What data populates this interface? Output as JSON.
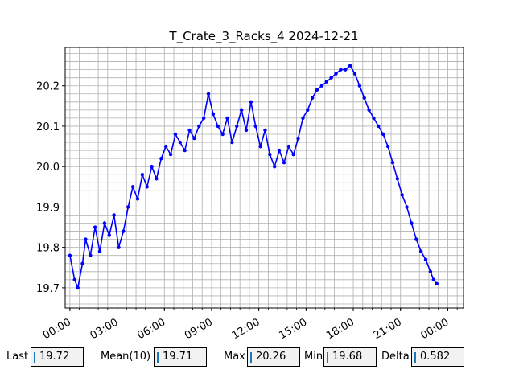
{
  "chart_data": {
    "type": "line",
    "title": "T_Crate_3_Racks_4 2024-12-21",
    "xlabel": "",
    "ylabel": "",
    "x_unit": "hours",
    "xlim": [
      -0.3,
      25.0
    ],
    "ylim": [
      19.65,
      20.295
    ],
    "x_ticks": [
      "00:00",
      "03:00",
      "06:00",
      "09:00",
      "12:00",
      "15:00",
      "18:00",
      "21:00",
      "00:00"
    ],
    "y_ticks": [
      "19.7",
      "19.8",
      "19.9",
      "20.0",
      "20.1",
      "20.2"
    ],
    "grid": true,
    "series": [
      {
        "color": "#0000ff",
        "marker": "dot",
        "points": [
          [
            0.0,
            19.78
          ],
          [
            0.3,
            19.72
          ],
          [
            0.5,
            19.7
          ],
          [
            0.8,
            19.76
          ],
          [
            1.0,
            19.82
          ],
          [
            1.3,
            19.78
          ],
          [
            1.6,
            19.85
          ],
          [
            1.9,
            19.79
          ],
          [
            2.2,
            19.86
          ],
          [
            2.5,
            19.83
          ],
          [
            2.8,
            19.88
          ],
          [
            3.1,
            19.8
          ],
          [
            3.4,
            19.84
          ],
          [
            3.7,
            19.9
          ],
          [
            4.0,
            19.95
          ],
          [
            4.3,
            19.92
          ],
          [
            4.6,
            19.98
          ],
          [
            4.9,
            19.95
          ],
          [
            5.2,
            20.0
          ],
          [
            5.5,
            19.97
          ],
          [
            5.8,
            20.02
          ],
          [
            6.1,
            20.05
          ],
          [
            6.4,
            20.03
          ],
          [
            6.7,
            20.08
          ],
          [
            7.0,
            20.06
          ],
          [
            7.3,
            20.04
          ],
          [
            7.6,
            20.09
          ],
          [
            7.9,
            20.07
          ],
          [
            8.2,
            20.1
          ],
          [
            8.5,
            20.12
          ],
          [
            8.8,
            20.18
          ],
          [
            9.1,
            20.13
          ],
          [
            9.4,
            20.1
          ],
          [
            9.7,
            20.08
          ],
          [
            10.0,
            20.12
          ],
          [
            10.3,
            20.06
          ],
          [
            10.6,
            20.1
          ],
          [
            10.9,
            20.14
          ],
          [
            11.2,
            20.09
          ],
          [
            11.5,
            20.16
          ],
          [
            11.8,
            20.1
          ],
          [
            12.1,
            20.05
          ],
          [
            12.4,
            20.09
          ],
          [
            12.7,
            20.03
          ],
          [
            13.0,
            20.0
          ],
          [
            13.3,
            20.04
          ],
          [
            13.6,
            20.01
          ],
          [
            13.9,
            20.05
          ],
          [
            14.2,
            20.03
          ],
          [
            14.5,
            20.07
          ],
          [
            14.8,
            20.12
          ],
          [
            15.1,
            20.14
          ],
          [
            15.4,
            20.17
          ],
          [
            15.7,
            20.19
          ],
          [
            16.0,
            20.2
          ],
          [
            16.3,
            20.21
          ],
          [
            16.6,
            20.22
          ],
          [
            16.9,
            20.23
          ],
          [
            17.2,
            20.24
          ],
          [
            17.5,
            20.24
          ],
          [
            17.8,
            20.25
          ],
          [
            18.1,
            20.23
          ],
          [
            18.4,
            20.2
          ],
          [
            18.7,
            20.17
          ],
          [
            19.0,
            20.14
          ],
          [
            19.3,
            20.12
          ],
          [
            19.6,
            20.1
          ],
          [
            19.9,
            20.08
          ],
          [
            20.2,
            20.05
          ],
          [
            20.5,
            20.01
          ],
          [
            20.8,
            19.97
          ],
          [
            21.1,
            19.93
          ],
          [
            21.4,
            19.9
          ],
          [
            21.7,
            19.86
          ],
          [
            22.0,
            19.82
          ],
          [
            22.3,
            19.79
          ],
          [
            22.6,
            19.77
          ],
          [
            22.9,
            19.74
          ],
          [
            23.1,
            19.72
          ],
          [
            23.3,
            19.71
          ]
        ]
      }
    ]
  },
  "stats": {
    "last_label": "Last",
    "last_value": "19.72",
    "mean_label": "Mean(10)",
    "mean_value": "19.71",
    "max_label": "Max",
    "max_value": "20.26",
    "min_label": "Min",
    "min_value": "19.68",
    "delta_label": "Delta",
    "delta_value": "0.582"
  }
}
